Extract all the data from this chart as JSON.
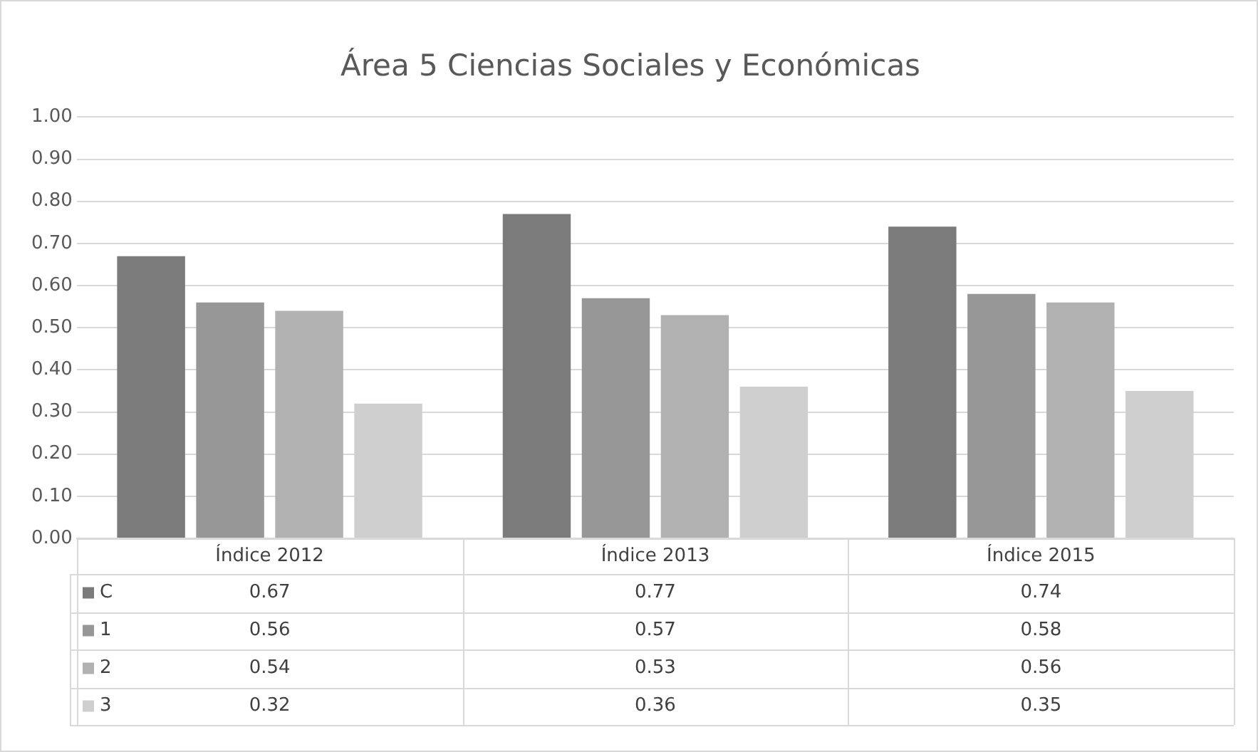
{
  "chart_data": {
    "type": "bar",
    "title": "Área 5 Ciencias Sociales y Económicas",
    "categories": [
      "Índice 2012",
      "Índice 2013",
      "Índice 2015"
    ],
    "series": [
      {
        "name": "C",
        "color": "#7b7b7b",
        "values": [
          0.67,
          0.77,
          0.74
        ]
      },
      {
        "name": "1",
        "color": "#979797",
        "values": [
          0.56,
          0.57,
          0.58
        ]
      },
      {
        "name": "2",
        "color": "#b1b1b1",
        "values": [
          0.54,
          0.53,
          0.56
        ]
      },
      {
        "name": "3",
        "color": "#cfcfcf",
        "values": [
          0.32,
          0.36,
          0.35
        ]
      }
    ],
    "ylim": [
      0,
      1
    ],
    "yticks": [
      {
        "value": 0,
        "label": "0.00"
      },
      {
        "value": 0.1,
        "label": "0.10"
      },
      {
        "value": 0.2,
        "label": "0.20"
      },
      {
        "value": 0.3,
        "label": "0.30"
      },
      {
        "value": 0.4,
        "label": "0.40"
      },
      {
        "value": 0.5,
        "label": "0.50"
      },
      {
        "value": 0.6,
        "label": "0.60"
      },
      {
        "value": 0.7,
        "label": "0.70"
      },
      {
        "value": 0.8,
        "label": "0.80"
      },
      {
        "value": 0.9,
        "label": "0.90"
      },
      {
        "value": 1,
        "label": "1.00"
      }
    ],
    "grid": "y",
    "data_labels": true,
    "legend": "bottom"
  }
}
